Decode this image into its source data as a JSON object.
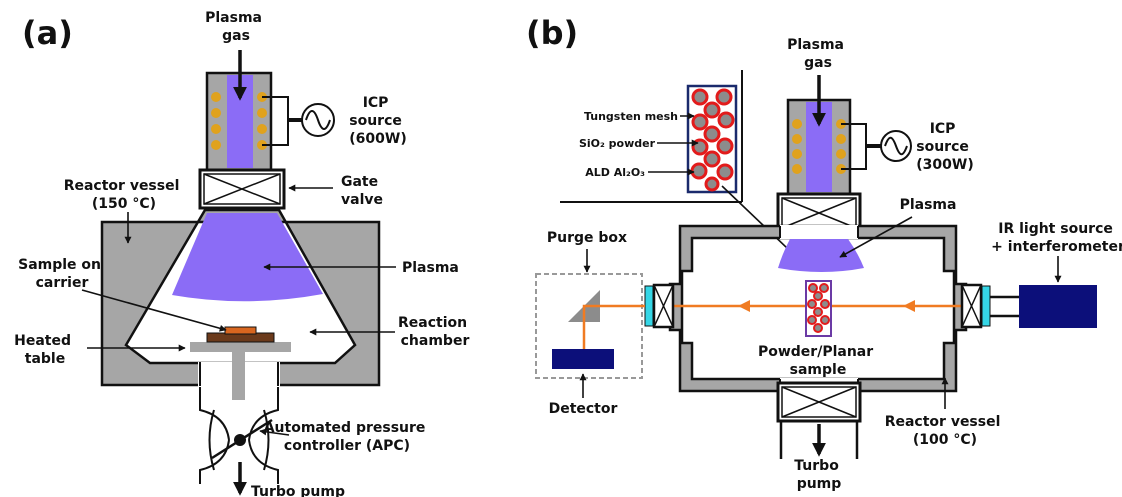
{
  "colors": {
    "chamber_gray": "#a6a6a6",
    "plasma_purple": "#8b6cf6",
    "coil_orange": "#e0a21d",
    "ir_beam": "#f07b22",
    "navy": "#0c0f7a",
    "window_cyan": "#35d6e6",
    "sample_red": "#e21b1b",
    "sample_brown": "#6b3a1b",
    "sample_orange": "#d8661f",
    "powder_gray": "#8c8c8c"
  },
  "panel_a": {
    "letter": "(a)",
    "plasma_gas": [
      "Plasma",
      "gas"
    ],
    "icp_source": [
      "ICP",
      "source",
      "(600W)"
    ],
    "reactor_vessel": [
      "Reactor vessel",
      "(150 °C)"
    ],
    "gate_valve": [
      "Gate",
      "valve"
    ],
    "sample_on_carrier": [
      "Sample on",
      "carrier"
    ],
    "plasma": "Plasma",
    "reaction_chamber": [
      "Reaction",
      "chamber"
    ],
    "heated_table": [
      "Heated",
      "table"
    ],
    "apc": [
      "Automated pressure",
      "controller (APC)"
    ],
    "turbo_pump": "Turbo pump"
  },
  "panel_b": {
    "letter": "(b)",
    "tungsten_mesh": "Tungsten mesh",
    "sio2_powder": "SiO₂ powder",
    "ald_al2o3": "ALD Al₂O₃",
    "plasma_gas": [
      "Plasma",
      "gas"
    ],
    "icp_source": [
      "ICP",
      "source",
      "(300W)"
    ],
    "plasma": "Plasma",
    "ir_source": [
      "IR light source",
      "+ interferometer"
    ],
    "purge_box": "Purge box",
    "detector": "Detector",
    "sample": [
      "Powder/Planar",
      "sample"
    ],
    "reactor_vessel": [
      "Reactor vessel",
      "(100 °C)"
    ],
    "turbo_pump": [
      "Turbo",
      "pump"
    ]
  }
}
